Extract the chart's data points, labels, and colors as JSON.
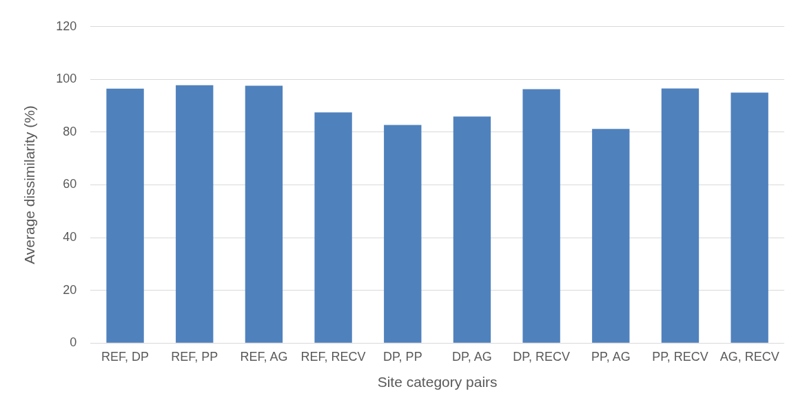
{
  "chart_data": {
    "type": "bar",
    "xlabel": "Site category pairs",
    "ylabel": "Average dissimilarity (%)",
    "categories": [
      "REF, DP",
      "REF, PP",
      "REF, AG",
      "REF, RECV",
      "DP, PP",
      "DP, AG",
      "DP, RECV",
      "PP, AG",
      "PP, RECV",
      "AG, RECV"
    ],
    "values": [
      96.5,
      97.8,
      97.6,
      87.5,
      82.7,
      85.9,
      96.3,
      81.2,
      96.6,
      95
    ],
    "color": "#4f81bd",
    "ylim": [
      0,
      120
    ],
    "yticks": [
      0,
      20,
      40,
      60,
      80,
      100,
      120
    ],
    "grid": "y",
    "legend": false
  }
}
